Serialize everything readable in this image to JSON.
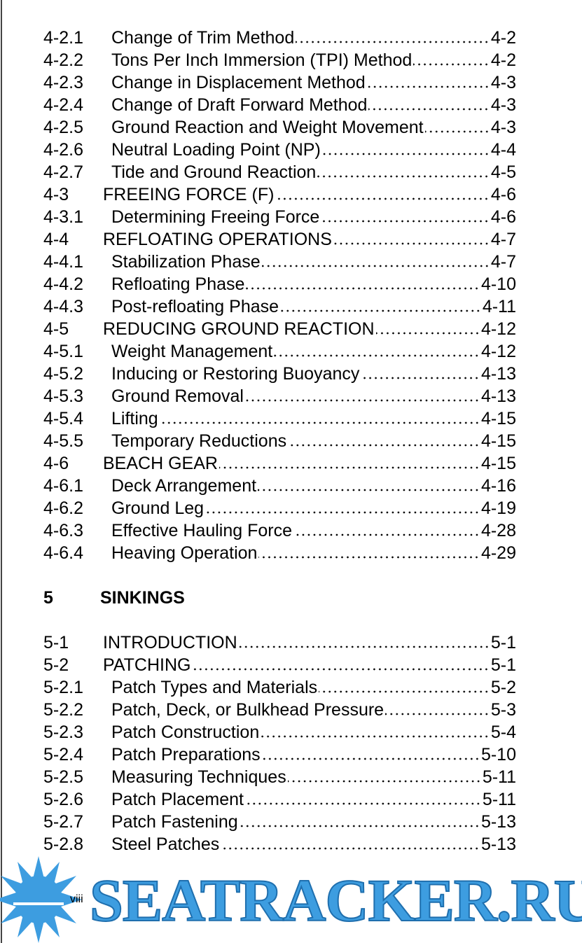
{
  "toc_groups": [
    {
      "entries": [
        {
          "number": "4-2.1",
          "title": "Change of Trim Method",
          "page": "4-2"
        },
        {
          "number": "4-2.2",
          "title": "Tons Per Inch Immersion (TPI) Method",
          "page": "4-2"
        },
        {
          "number": "4-2.3",
          "title": "Change in Displacement Method",
          "page": "4-3"
        },
        {
          "number": "4-2.4",
          "title": "Change of Draft Forward Method",
          "page": "4-3"
        },
        {
          "number": "4-2.5",
          "title": "Ground Reaction and Weight Movement",
          "page": "4-3"
        },
        {
          "number": "4-2.6",
          "title": "Neutral Loading Point (NP)",
          "page": "4-4"
        },
        {
          "number": "4-2.7",
          "title": "Tide and Ground Reaction",
          "page": "4-5"
        },
        {
          "number": "4-3",
          "title": "FREEING FORCE (F)",
          "page": "4-6"
        },
        {
          "number": "4-3.1",
          "title": "Determining Freeing Force",
          "page": "4-6"
        },
        {
          "number": "4-4",
          "title": "REFLOATING OPERATIONS",
          "page": "4-7"
        },
        {
          "number": "4-4.1",
          "title": "Stabilization Phase",
          "page": "4-7"
        },
        {
          "number": "4-4.2",
          "title": "Refloating Phase",
          "page": "4-10"
        },
        {
          "number": "4-4.3",
          "title": "Post-refloating Phase",
          "page": "4-11"
        },
        {
          "number": "4-5",
          "title": "REDUCING GROUND REACTION",
          "page": "4-12"
        },
        {
          "number": "4-5.1",
          "title": "Weight Management",
          "page": "4-12"
        },
        {
          "number": "4-5.2",
          "title": "Inducing or Restoring Buoyancy",
          "page": "4-13"
        },
        {
          "number": "4-5.3",
          "title": "Ground Removal",
          "page": "4-13"
        },
        {
          "number": "4-5.4",
          "title": "Lifting",
          "page": "4-15"
        },
        {
          "number": "4-5.5",
          "title": "Temporary Reductions",
          "page": "4-15"
        },
        {
          "number": "4-6",
          "title": "BEACH GEAR",
          "page": "4-15"
        },
        {
          "number": "4-6.1",
          "title": "Deck Arrangement",
          "page": "4-16"
        },
        {
          "number": "4-6.2",
          "title": "Ground Leg",
          "page": "4-19"
        },
        {
          "number": "4-6.3",
          "title": "Effective Hauling Force",
          "page": "4-28"
        },
        {
          "number": "4-6.4",
          "title": "Heaving Operation",
          "page": "4-29"
        }
      ]
    },
    {
      "heading": {
        "number": "5",
        "title": "SINKINGS"
      },
      "entries": [
        {
          "number": "5-1",
          "title": "INTRODUCTION",
          "page": "5-1"
        },
        {
          "number": "5-2",
          "title": "PATCHING",
          "page": "5-1"
        },
        {
          "number": "5-2.1",
          "title": "Patch Types and Materials",
          "page": "5-2"
        },
        {
          "number": "5-2.2",
          "title": "Patch, Deck, or Bulkhead Pressure",
          "page": "5-3"
        },
        {
          "number": "5-2.3",
          "title": "Patch Construction",
          "page": "5-4"
        },
        {
          "number": "5-2.4",
          "title": "Patch Preparations",
          "page": "5-10"
        },
        {
          "number": "5-2.5",
          "title": "Measuring Techniques",
          "page": "5-11"
        },
        {
          "number": "5-2.6",
          "title": "Patch Placement",
          "page": "5-11"
        },
        {
          "number": "5-2.7",
          "title": "Patch Fastening",
          "page": "5-13"
        },
        {
          "number": "5-2.8",
          "title": "Steel Patches",
          "page": "5-13"
        }
      ]
    }
  ],
  "footer": {
    "page_label": "viii",
    "watermark": "SEATRACKER.RU"
  }
}
